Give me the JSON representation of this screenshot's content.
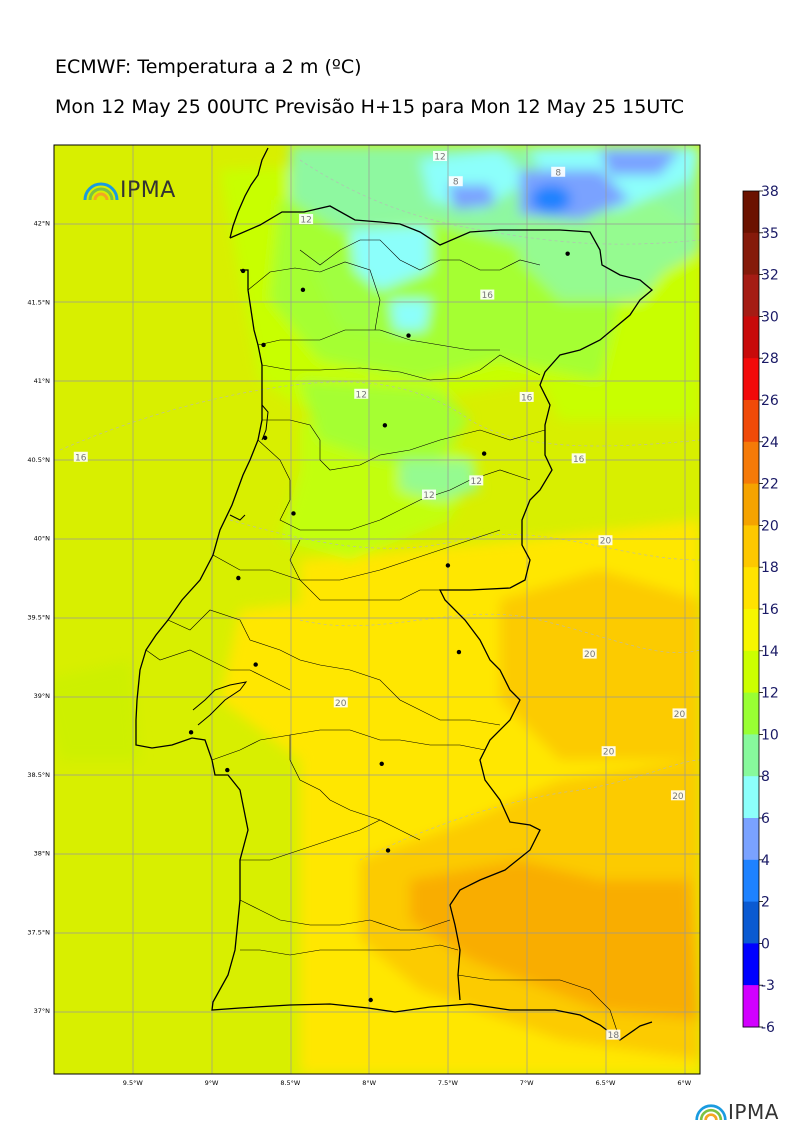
{
  "title_line1": "ECMWF: Temperatura a 2 m (ºC)",
  "title_line2": "Mon 12 May 25 00UTC Previsão H+15 para Mon 12 May 25 15UTC",
  "logo_text": "IPMA",
  "footer_logo_text": "IPMA",
  "map": {
    "lon_ticks": [
      "9.5°W",
      "9°W",
      "8.5°W",
      "8°W",
      "7.5°W",
      "7°W",
      "6.5°W",
      "6°W"
    ],
    "lat_ticks": [
      "42°N",
      "41.5°N",
      "41°N",
      "40.5°N",
      "40°N",
      "39.5°N",
      "39°N",
      "38.5°N",
      "38°N",
      "37.5°N",
      "37°N"
    ],
    "contour_labels": [
      {
        "text": "12",
        "lon": -7.55,
        "lat": 42.43
      },
      {
        "text": "8",
        "lon": -7.45,
        "lat": 42.27
      },
      {
        "text": "8",
        "lon": -6.8,
        "lat": 42.33
      },
      {
        "text": "12",
        "lon": -8.4,
        "lat": 42.03
      },
      {
        "text": "16",
        "lon": -7.25,
        "lat": 41.55
      },
      {
        "text": "12",
        "lon": -8.05,
        "lat": 40.92
      },
      {
        "text": "16",
        "lon": -7.0,
        "lat": 40.9
      },
      {
        "text": "16",
        "lon": -9.83,
        "lat": 40.52
      },
      {
        "text": "16",
        "lon": -6.67,
        "lat": 40.51
      },
      {
        "text": "12",
        "lon": -7.62,
        "lat": 40.28
      },
      {
        "text": "12",
        "lon": -7.32,
        "lat": 40.37
      },
      {
        "text": "20",
        "lon": -6.5,
        "lat": 39.99
      },
      {
        "text": "20",
        "lon": -6.6,
        "lat": 39.27
      },
      {
        "text": "20",
        "lon": -8.18,
        "lat": 38.96
      },
      {
        "text": "20",
        "lon": -6.03,
        "lat": 38.89
      },
      {
        "text": "20",
        "lon": -6.48,
        "lat": 38.65
      },
      {
        "text": "20",
        "lon": -6.04,
        "lat": 38.37
      },
      {
        "text": "18",
        "lon": -6.45,
        "lat": 36.85
      }
    ],
    "cities": [
      {
        "lon": -8.8,
        "lat": 41.7
      },
      {
        "lon": -8.42,
        "lat": 41.58
      },
      {
        "lon": -6.74,
        "lat": 41.81
      },
      {
        "lon": -8.67,
        "lat": 41.23
      },
      {
        "lon": -7.75,
        "lat": 41.29
      },
      {
        "lon": -8.66,
        "lat": 40.64
      },
      {
        "lon": -7.9,
        "lat": 40.72
      },
      {
        "lon": -7.27,
        "lat": 40.54
      },
      {
        "lon": -8.48,
        "lat": 40.16
      },
      {
        "lon": -8.83,
        "lat": 39.75
      },
      {
        "lon": -7.5,
        "lat": 39.83
      },
      {
        "lon": -8.72,
        "lat": 39.2
      },
      {
        "lon": -7.43,
        "lat": 39.28
      },
      {
        "lon": -9.13,
        "lat": 38.77
      },
      {
        "lon": -8.9,
        "lat": 38.53
      },
      {
        "lon": -7.92,
        "lat": 38.57
      },
      {
        "lon": -7.88,
        "lat": 38.02
      },
      {
        "lon": -7.99,
        "lat": 37.07
      }
    ]
  },
  "colorbar": {
    "ticks": [
      "38",
      "35",
      "32",
      "30",
      "28",
      "26",
      "24",
      "22",
      "20",
      "18",
      "16",
      "14",
      "12",
      "10",
      "8",
      "6",
      "4",
      "2",
      "0",
      "-3",
      "-6"
    ],
    "colors": [
      "#6b1200",
      "#851a0a",
      "#a51c14",
      "#c80a0a",
      "#f20a0a",
      "#f04a08",
      "#f57a08",
      "#f5a300",
      "#fdc800",
      "#ffe300",
      "#f7f700",
      "#ccff00",
      "#99ff33",
      "#87f99c",
      "#8cfffb",
      "#7aa2ff",
      "#1e82ff",
      "#0a5ad2",
      "#0000ff",
      "#7a00ff",
      "#d200ff"
    ]
  }
}
